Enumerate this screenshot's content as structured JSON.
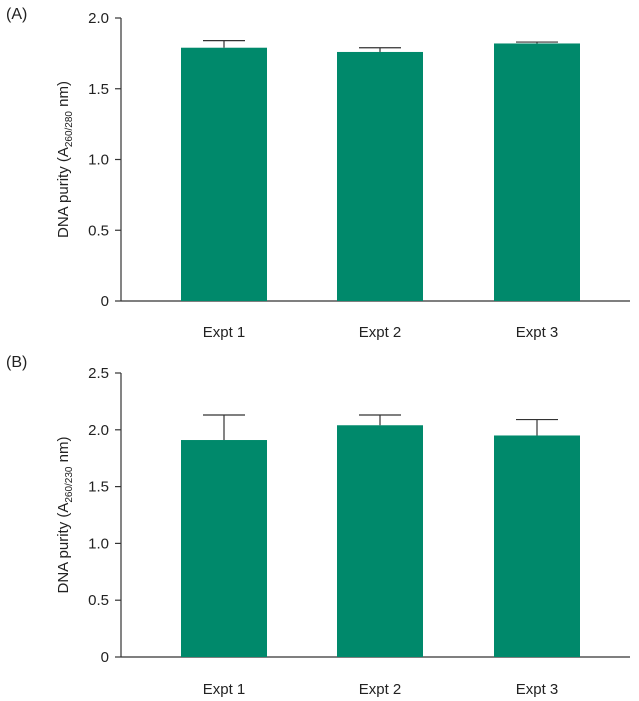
{
  "chart_data": [
    {
      "type": "bar",
      "panel_label": "(A)",
      "categories": [
        "Expt 1",
        "Expt 2",
        "Expt 3"
      ],
      "values": [
        1.79,
        1.76,
        1.82
      ],
      "errors": [
        0.05,
        0.03,
        0.01
      ],
      "ylabel": {
        "prefix": "DNA purity (A",
        "sub": "260/280",
        "suffix": " nm)"
      },
      "ylim": [
        0,
        2.0
      ],
      "yticks": [
        0,
        0.5,
        1.0,
        1.5,
        2.0
      ],
      "ytick_labels": [
        "0",
        "0.5",
        "1.0",
        "1.5",
        "2.0"
      ],
      "bar_color": "#00896b",
      "grid": false
    },
    {
      "type": "bar",
      "panel_label": "(B)",
      "categories": [
        "Expt 1",
        "Expt 2",
        "Expt 3"
      ],
      "values": [
        1.91,
        2.04,
        1.95
      ],
      "errors": [
        0.22,
        0.09,
        0.14
      ],
      "ylabel": {
        "prefix": "DNA purity (A",
        "sub": "260/230",
        "suffix": " nm)"
      },
      "ylim": [
        0,
        2.5
      ],
      "yticks": [
        0,
        0.5,
        1.0,
        1.5,
        2.0,
        2.5
      ],
      "ytick_labels": [
        "0",
        "0.5",
        "1.0",
        "1.5",
        "2.0",
        "2.5"
      ],
      "bar_color": "#00896b",
      "grid": false
    }
  ]
}
